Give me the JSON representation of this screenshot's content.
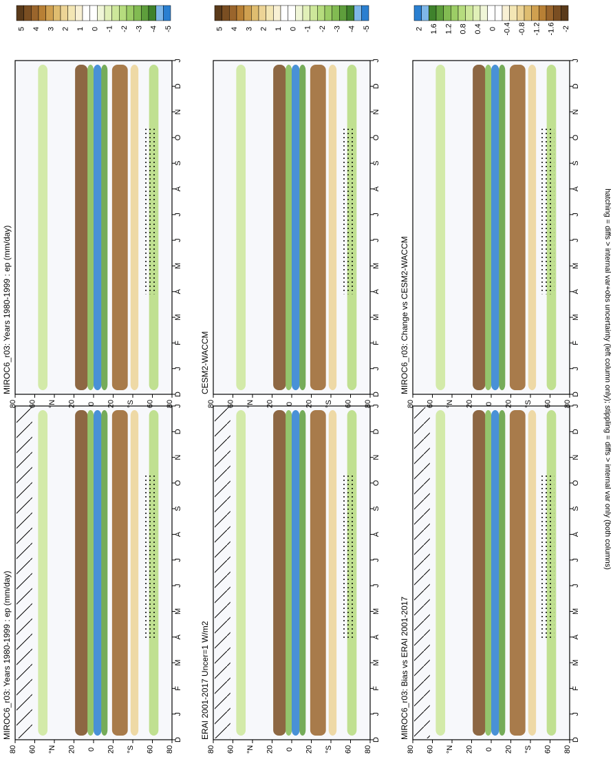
{
  "figure_caption": "hatching = diffs > internal var+obs uncertainty (left column only); stippling = diffs > internal var only (both columns)",
  "chart_data": [
    {
      "type": "heatmap",
      "title": "MIROC6_r03: Years 1980-1999 : ep (mm/day)",
      "x_ticks": [
        "D",
        "J",
        "F",
        "M",
        "A",
        "M",
        "J",
        "J",
        "A",
        "S",
        "O",
        "N",
        "D",
        "J"
      ],
      "y_ticks": [
        "80",
        "60",
        "°N",
        "20",
        "0",
        "20",
        "°S",
        "60",
        "80"
      ],
      "colorbar": {
        "labels": [
          "5",
          "4",
          "3",
          "2",
          "1",
          "0",
          "-1",
          "-2",
          "-3",
          "-4",
          "-5"
        ],
        "colors": [
          "#5a3a1a",
          "#7a4e22",
          "#9a652c",
          "#b88035",
          "#cfa050",
          "#dfbd70",
          "#ecd496",
          "#f3e6b4",
          "#f8f0d4",
          "#ffffff",
          "#ffffff",
          "#f0f6d8",
          "#e1f0b8",
          "#cde79a",
          "#b6dc7e",
          "#9ccd66",
          "#82bb52",
          "#5e9e3c",
          "#3f822c",
          "#7fb7e8",
          "#2a7fd0"
        ]
      },
      "patterns": {
        "hatching": true,
        "stippling": true
      }
    },
    {
      "type": "heatmap",
      "title": "MIROC6_r03: Years 1980-1999 : ep (mm/day)",
      "x_ticks": [
        "D",
        "J",
        "F",
        "M",
        "A",
        "M",
        "J",
        "J",
        "A",
        "S",
        "O",
        "N",
        "D",
        "J"
      ],
      "y_ticks": [
        "80",
        "60",
        "°N",
        "20",
        "0",
        "20",
        "°S",
        "60",
        "80"
      ],
      "colorbar": {
        "labels": [
          "5",
          "4",
          "3",
          "2",
          "1",
          "0",
          "-1",
          "-2",
          "-3",
          "-4",
          "-5"
        ],
        "colors": [
          "#5a3a1a",
          "#7a4e22",
          "#9a652c",
          "#b88035",
          "#cfa050",
          "#dfbd70",
          "#ecd496",
          "#f3e6b4",
          "#f8f0d4",
          "#ffffff",
          "#ffffff",
          "#f0f6d8",
          "#e1f0b8",
          "#cde79a",
          "#b6dc7e",
          "#9ccd66",
          "#82bb52",
          "#5e9e3c",
          "#3f822c",
          "#7fb7e8",
          "#2a7fd0"
        ]
      },
      "patterns": {
        "hatching": false,
        "stippling": true
      }
    },
    {
      "type": "heatmap",
      "title": "ERAI 2001-2017 Uncer=1 W/m2",
      "x_ticks": [
        "D",
        "J",
        "F",
        "M",
        "A",
        "M",
        "J",
        "J",
        "A",
        "S",
        "O",
        "N",
        "D",
        "J"
      ],
      "y_ticks": [
        "80",
        "60",
        "°N",
        "20",
        "0",
        "20",
        "°S",
        "60",
        "80"
      ],
      "colorbar": {
        "labels": [
          "5",
          "4",
          "3",
          "2",
          "1",
          "0",
          "-1",
          "-2",
          "-3",
          "-4",
          "-5"
        ],
        "colors": [
          "#5a3a1a",
          "#7a4e22",
          "#9a652c",
          "#b88035",
          "#cfa050",
          "#dfbd70",
          "#ecd496",
          "#f3e6b4",
          "#f8f0d4",
          "#ffffff",
          "#ffffff",
          "#f0f6d8",
          "#e1f0b8",
          "#cde79a",
          "#b6dc7e",
          "#9ccd66",
          "#82bb52",
          "#5e9e3c",
          "#3f822c",
          "#7fb7e8",
          "#2a7fd0"
        ]
      },
      "patterns": {
        "hatching": true,
        "stippling": true
      }
    },
    {
      "type": "heatmap",
      "title": "CESM2-WACCM",
      "x_ticks": [
        "D",
        "J",
        "F",
        "M",
        "A",
        "M",
        "J",
        "J",
        "A",
        "S",
        "O",
        "N",
        "D",
        "J"
      ],
      "y_ticks": [
        "80",
        "60",
        "°N",
        "20",
        "0",
        "20",
        "°S",
        "60",
        "80"
      ],
      "colorbar": {
        "labels": [
          "5",
          "4",
          "3",
          "2",
          "1",
          "0",
          "-1",
          "-2",
          "-3",
          "-4",
          "-5"
        ],
        "colors": [
          "#5a3a1a",
          "#7a4e22",
          "#9a652c",
          "#b88035",
          "#cfa050",
          "#dfbd70",
          "#ecd496",
          "#f3e6b4",
          "#f8f0d4",
          "#ffffff",
          "#ffffff",
          "#f0f6d8",
          "#e1f0b8",
          "#cde79a",
          "#b6dc7e",
          "#9ccd66",
          "#82bb52",
          "#5e9e3c",
          "#3f822c",
          "#7fb7e8",
          "#2a7fd0"
        ]
      },
      "patterns": {
        "hatching": false,
        "stippling": true
      }
    },
    {
      "type": "heatmap",
      "title": "MIROC6_r03: Bias vs ERAI 2001-2017",
      "x_ticks": [
        "D",
        "J",
        "F",
        "M",
        "A",
        "M",
        "J",
        "J",
        "A",
        "S",
        "O",
        "N",
        "D",
        "J"
      ],
      "y_ticks": [
        "80",
        "60",
        "°N",
        "20",
        "0",
        "20",
        "°S",
        "60",
        "80"
      ],
      "colorbar": {
        "labels": [
          "2",
          "1.6",
          "1.2",
          "0.8",
          "0.4",
          "0",
          "-0.4",
          "-0.8",
          "-1.2",
          "-1.6",
          "-2"
        ],
        "colors": [
          "#5a3a1a",
          "#7a4e22",
          "#9a652c",
          "#b88035",
          "#cfa050",
          "#dfbd70",
          "#ecd496",
          "#f3e6b4",
          "#f8f0d4",
          "#ffffff",
          "#ffffff",
          "#f0f6d8",
          "#e1f0b8",
          "#cde79a",
          "#b6dc7e",
          "#9ccd66",
          "#82bb52",
          "#5e9e3c",
          "#3f822c",
          "#7fb7e8",
          "#2a7fd0"
        ]
      },
      "patterns": {
        "hatching": true,
        "stippling": true
      }
    },
    {
      "type": "heatmap",
      "title": "MIROC6_r03: Change vs CESM2-WACCM",
      "x_ticks": [
        "D",
        "J",
        "F",
        "M",
        "A",
        "M",
        "J",
        "J",
        "A",
        "S",
        "O",
        "N",
        "D",
        "J"
      ],
      "y_ticks": [
        "80",
        "60",
        "°N",
        "20",
        "0",
        "20",
        "°S",
        "60",
        "80"
      ],
      "colorbar": {
        "labels": [
          "2",
          "1.6",
          "1.2",
          "0.8",
          "0.4",
          "0",
          "-0.4",
          "-0.8",
          "-1.2",
          "-1.6",
          "-2"
        ],
        "colors": [
          "#2a7fd0",
          "#7fb7e8",
          "#3f822c",
          "#5e9e3c",
          "#82bb52",
          "#9ccd66",
          "#b6dc7e",
          "#cde79a",
          "#e1f0b8",
          "#f0f6d8",
          "#ffffff",
          "#ffffff",
          "#f8f0d4",
          "#f3e6b4",
          "#ecd496",
          "#dfbd70",
          "#cfa050",
          "#b88035",
          "#9a652c",
          "#7a4e22",
          "#5a3a1a"
        ]
      },
      "patterns": {
        "hatching": false,
        "stippling": true
      }
    }
  ]
}
